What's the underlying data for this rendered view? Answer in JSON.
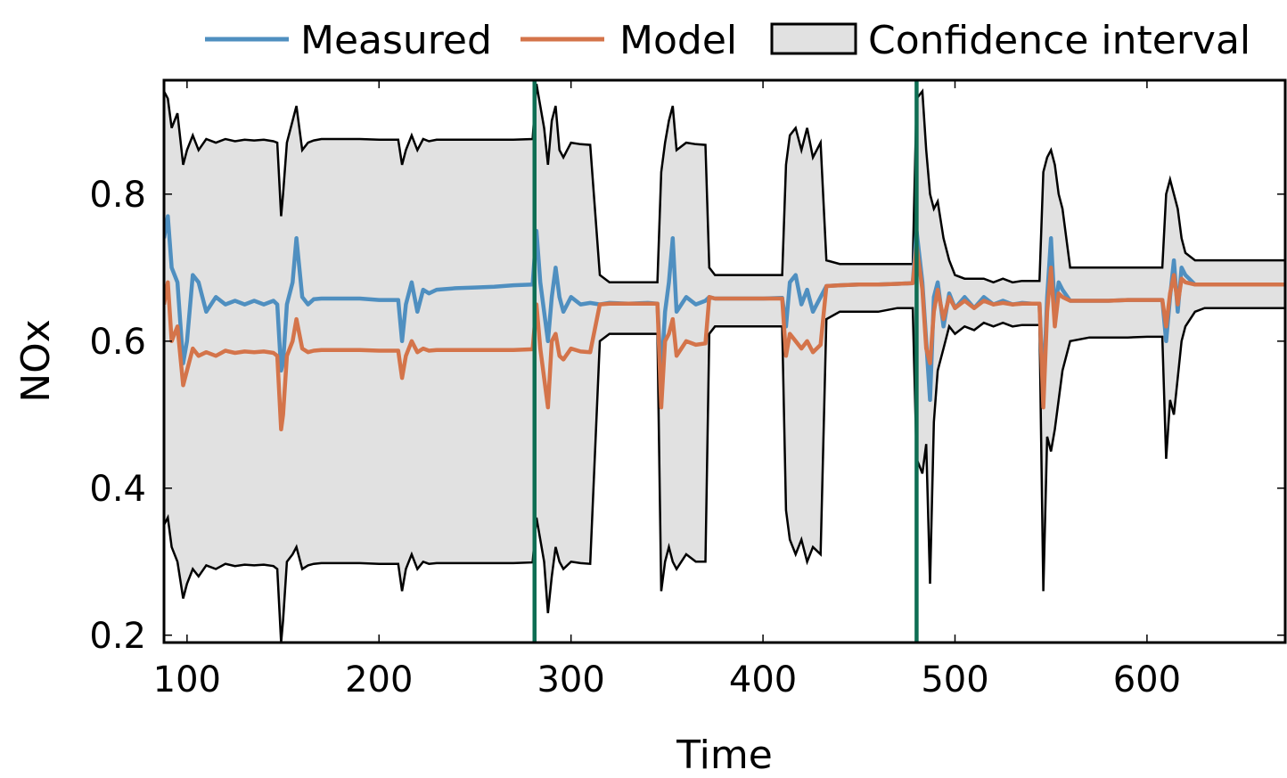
{
  "chart_data": {
    "type": "line",
    "xlabel": "Time",
    "ylabel": "NOx",
    "xlim": [
      88,
      672
    ],
    "ylim": [
      0.19,
      0.955
    ],
    "xticks": [
      100,
      200,
      300,
      400,
      500,
      600
    ],
    "xtick_labels": [
      "100",
      "200",
      "300",
      "400",
      "500",
      "600"
    ],
    "yticks": [
      0.2,
      0.4,
      0.6,
      0.8
    ],
    "ytick_labels": [
      "0.2",
      "0.4",
      "0.6",
      "0.8"
    ],
    "grid": false,
    "legend": {
      "position": "top",
      "entries": [
        "Measured",
        "Model",
        "Confidence interval"
      ]
    },
    "colors": {
      "measured": "#4f8fc0",
      "model": "#d4744a",
      "band_fill": "#e1e1e1",
      "band_edge": "#000000",
      "vline": "#0e6e53"
    },
    "vertical_lines": [
      281,
      480
    ],
    "series": [
      {
        "name": "Measured",
        "x": [
          88,
          90,
          92,
          95,
          98,
          100,
          103,
          106,
          110,
          115,
          120,
          125,
          130,
          135,
          140,
          145,
          147,
          149,
          150,
          152,
          155,
          157,
          160,
          163,
          166,
          170,
          180,
          190,
          200,
          210,
          212,
          214,
          217,
          220,
          223,
          226,
          230,
          240,
          250,
          260,
          270,
          280,
          282,
          284,
          286,
          288,
          290,
          292,
          294,
          296,
          300,
          305,
          310,
          315,
          320,
          330,
          340,
          345,
          347,
          349,
          351,
          353,
          355,
          360,
          365,
          370,
          372,
          375,
          380,
          390,
          400,
          410,
          412,
          414,
          417,
          420,
          423,
          426,
          430,
          433,
          440,
          450,
          460,
          470,
          478,
          480,
          483,
          485,
          487,
          489,
          491,
          494,
          497,
          500,
          505,
          510,
          515,
          520,
          525,
          530,
          535,
          540,
          544,
          546,
          548,
          550,
          552,
          554,
          556,
          560,
          570,
          580,
          590,
          600,
          608,
          610,
          612,
          614,
          616,
          618,
          620,
          625,
          630,
          640,
          650,
          660,
          672
        ],
        "values": [
          0.74,
          0.77,
          0.7,
          0.68,
          0.57,
          0.6,
          0.69,
          0.68,
          0.64,
          0.66,
          0.65,
          0.655,
          0.65,
          0.655,
          0.65,
          0.655,
          0.65,
          0.56,
          0.57,
          0.65,
          0.68,
          0.74,
          0.66,
          0.65,
          0.657,
          0.658,
          0.658,
          0.658,
          0.656,
          0.656,
          0.6,
          0.65,
          0.68,
          0.64,
          0.67,
          0.665,
          0.67,
          0.672,
          0.673,
          0.674,
          0.676,
          0.677,
          0.75,
          0.68,
          0.64,
          0.6,
          0.66,
          0.7,
          0.66,
          0.64,
          0.66,
          0.65,
          0.652,
          0.65,
          0.652,
          0.651,
          0.652,
          0.651,
          0.55,
          0.64,
          0.68,
          0.74,
          0.64,
          0.66,
          0.65,
          0.655,
          0.66,
          0.658,
          0.658,
          0.658,
          0.658,
          0.659,
          0.62,
          0.68,
          0.69,
          0.65,
          0.67,
          0.64,
          0.66,
          0.675,
          0.676,
          0.677,
          0.677,
          0.678,
          0.679,
          0.75,
          0.68,
          0.6,
          0.52,
          0.66,
          0.68,
          0.62,
          0.665,
          0.645,
          0.66,
          0.645,
          0.66,
          0.65,
          0.655,
          0.65,
          0.652,
          0.651,
          0.651,
          0.53,
          0.66,
          0.74,
          0.64,
          0.68,
          0.67,
          0.655,
          0.655,
          0.655,
          0.656,
          0.656,
          0.656,
          0.6,
          0.66,
          0.71,
          0.64,
          0.7,
          0.69,
          0.677,
          0.677,
          0.677,
          0.677,
          0.677,
          0.677
        ]
      },
      {
        "name": "Model",
        "x": [
          88,
          90,
          92,
          95,
          98,
          100,
          103,
          106,
          110,
          115,
          120,
          125,
          130,
          135,
          140,
          145,
          147,
          149,
          150,
          152,
          155,
          157,
          160,
          163,
          166,
          170,
          180,
          190,
          200,
          210,
          212,
          214,
          217,
          220,
          223,
          226,
          230,
          240,
          250,
          260,
          270,
          280,
          282,
          284,
          286,
          288,
          290,
          292,
          294,
          296,
          300,
          305,
          310,
          315,
          320,
          330,
          340,
          345,
          347,
          349,
          351,
          353,
          355,
          360,
          365,
          370,
          372,
          375,
          380,
          390,
          400,
          410,
          412,
          414,
          417,
          420,
          423,
          426,
          430,
          433,
          440,
          450,
          460,
          470,
          478,
          480,
          483,
          485,
          487,
          489,
          491,
          494,
          497,
          500,
          505,
          510,
          515,
          520,
          525,
          530,
          535,
          540,
          544,
          546,
          548,
          550,
          552,
          554,
          556,
          560,
          570,
          580,
          590,
          600,
          608,
          610,
          612,
          614,
          616,
          618,
          620,
          625,
          630,
          640,
          650,
          660,
          672
        ],
        "values": [
          0.65,
          0.68,
          0.6,
          0.62,
          0.54,
          0.56,
          0.59,
          0.58,
          0.585,
          0.58,
          0.587,
          0.584,
          0.586,
          0.585,
          0.586,
          0.584,
          0.58,
          0.48,
          0.5,
          0.58,
          0.6,
          0.63,
          0.59,
          0.585,
          0.587,
          0.588,
          0.588,
          0.588,
          0.587,
          0.587,
          0.55,
          0.58,
          0.6,
          0.585,
          0.59,
          0.587,
          0.588,
          0.588,
          0.588,
          0.588,
          0.588,
          0.589,
          0.65,
          0.59,
          0.55,
          0.51,
          0.6,
          0.61,
          0.58,
          0.575,
          0.59,
          0.586,
          0.585,
          0.65,
          0.651,
          0.651,
          0.651,
          0.651,
          0.51,
          0.6,
          0.61,
          0.63,
          0.58,
          0.6,
          0.595,
          0.597,
          0.66,
          0.658,
          0.658,
          0.658,
          0.658,
          0.658,
          0.58,
          0.61,
          0.6,
          0.59,
          0.6,
          0.585,
          0.595,
          0.675,
          0.676,
          0.677,
          0.677,
          0.678,
          0.679,
          0.73,
          0.67,
          0.59,
          0.57,
          0.64,
          0.67,
          0.63,
          0.66,
          0.645,
          0.655,
          0.645,
          0.655,
          0.65,
          0.652,
          0.65,
          0.651,
          0.651,
          0.651,
          0.51,
          0.64,
          0.7,
          0.62,
          0.665,
          0.66,
          0.655,
          0.655,
          0.655,
          0.656,
          0.656,
          0.656,
          0.62,
          0.665,
          0.69,
          0.65,
          0.685,
          0.68,
          0.677,
          0.677,
          0.677,
          0.677,
          0.677,
          0.677
        ]
      },
      {
        "name": "Confidence interval",
        "x": [
          88,
          90,
          92,
          95,
          98,
          100,
          103,
          106,
          110,
          115,
          120,
          125,
          130,
          135,
          140,
          145,
          147,
          149,
          150,
          152,
          155,
          157,
          160,
          163,
          166,
          170,
          180,
          190,
          200,
          210,
          212,
          214,
          217,
          220,
          223,
          226,
          230,
          240,
          250,
          260,
          270,
          280,
          282,
          284,
          286,
          288,
          290,
          292,
          294,
          296,
          300,
          305,
          310,
          315,
          320,
          330,
          340,
          345,
          347,
          349,
          351,
          353,
          355,
          360,
          365,
          370,
          372,
          375,
          380,
          390,
          400,
          410,
          412,
          414,
          417,
          420,
          423,
          426,
          430,
          433,
          440,
          450,
          460,
          470,
          478,
          480,
          483,
          485,
          487,
          489,
          491,
          494,
          497,
          500,
          505,
          510,
          515,
          520,
          525,
          530,
          535,
          540,
          544,
          546,
          548,
          550,
          552,
          554,
          556,
          560,
          570,
          580,
          590,
          600,
          608,
          610,
          612,
          614,
          616,
          618,
          620,
          625,
          630,
          640,
          650,
          660,
          672
        ],
        "upper": [
          0.94,
          0.93,
          0.89,
          0.91,
          0.84,
          0.86,
          0.88,
          0.86,
          0.875,
          0.87,
          0.875,
          0.872,
          0.874,
          0.873,
          0.874,
          0.872,
          0.87,
          0.77,
          0.8,
          0.87,
          0.9,
          0.92,
          0.86,
          0.87,
          0.873,
          0.875,
          0.875,
          0.875,
          0.874,
          0.874,
          0.84,
          0.86,
          0.88,
          0.86,
          0.875,
          0.872,
          0.874,
          0.874,
          0.874,
          0.874,
          0.874,
          0.875,
          0.95,
          0.92,
          0.89,
          0.84,
          0.9,
          0.92,
          0.86,
          0.85,
          0.87,
          0.868,
          0.867,
          0.69,
          0.68,
          0.68,
          0.68,
          0.68,
          0.83,
          0.87,
          0.9,
          0.92,
          0.86,
          0.87,
          0.868,
          0.867,
          0.7,
          0.69,
          0.69,
          0.69,
          0.69,
          0.69,
          0.84,
          0.88,
          0.89,
          0.86,
          0.89,
          0.85,
          0.87,
          0.71,
          0.705,
          0.705,
          0.705,
          0.705,
          0.705,
          0.93,
          0.94,
          0.86,
          0.8,
          0.78,
          0.79,
          0.74,
          0.71,
          0.69,
          0.685,
          0.685,
          0.685,
          0.68,
          0.685,
          0.68,
          0.682,
          0.682,
          0.682,
          0.83,
          0.85,
          0.86,
          0.84,
          0.8,
          0.78,
          0.7,
          0.7,
          0.7,
          0.7,
          0.7,
          0.7,
          0.8,
          0.82,
          0.8,
          0.78,
          0.74,
          0.72,
          0.71,
          0.71,
          0.71,
          0.71,
          0.71,
          0.71
        ],
        "lower": [
          0.35,
          0.36,
          0.32,
          0.3,
          0.25,
          0.27,
          0.29,
          0.28,
          0.295,
          0.29,
          0.297,
          0.294,
          0.296,
          0.295,
          0.296,
          0.294,
          0.29,
          0.19,
          0.22,
          0.3,
          0.31,
          0.32,
          0.29,
          0.295,
          0.297,
          0.298,
          0.298,
          0.298,
          0.297,
          0.297,
          0.26,
          0.29,
          0.31,
          0.29,
          0.3,
          0.297,
          0.298,
          0.298,
          0.298,
          0.298,
          0.298,
          0.299,
          0.36,
          0.33,
          0.3,
          0.23,
          0.28,
          0.32,
          0.3,
          0.29,
          0.3,
          0.298,
          0.297,
          0.6,
          0.61,
          0.61,
          0.61,
          0.61,
          0.26,
          0.3,
          0.32,
          0.3,
          0.29,
          0.31,
          0.3,
          0.3,
          0.61,
          0.62,
          0.62,
          0.62,
          0.62,
          0.62,
          0.37,
          0.33,
          0.31,
          0.33,
          0.3,
          0.32,
          0.31,
          0.63,
          0.64,
          0.64,
          0.64,
          0.645,
          0.645,
          0.44,
          0.42,
          0.46,
          0.27,
          0.49,
          0.56,
          0.59,
          0.62,
          0.61,
          0.62,
          0.615,
          0.625,
          0.62,
          0.625,
          0.62,
          0.622,
          0.622,
          0.622,
          0.26,
          0.47,
          0.45,
          0.48,
          0.52,
          0.56,
          0.6,
          0.605,
          0.605,
          0.605,
          0.606,
          0.606,
          0.44,
          0.52,
          0.5,
          0.55,
          0.6,
          0.62,
          0.64,
          0.645,
          0.645,
          0.645,
          0.645,
          0.645
        ]
      }
    ]
  }
}
